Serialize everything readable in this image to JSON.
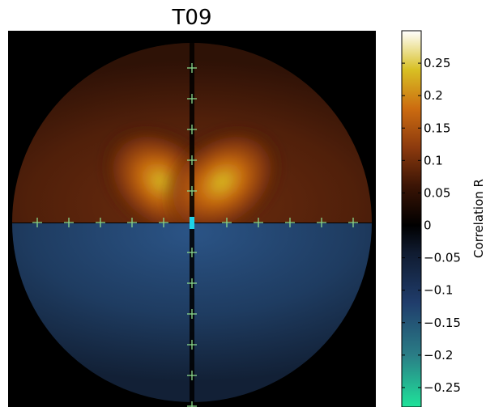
{
  "chart_data": {
    "type": "heatmap",
    "title": "T09",
    "colorbar": {
      "label": "Correlation R",
      "range": [
        -0.28,
        0.3
      ],
      "ticks": [
        0.25,
        0.2,
        0.15,
        0.1,
        0.05,
        0,
        -0.05,
        -0.1,
        -0.15,
        -0.2,
        -0.25
      ],
      "tick_labels": [
        "0.25",
        "0.2",
        "0.15",
        "0.1",
        "0.05",
        "0",
        "−0.05",
        "−0.1",
        "−0.15",
        "−0.2",
        "−0.25"
      ],
      "colormap": [
        {
          "value": -0.28,
          "color": "#1fe39a"
        },
        {
          "value": -0.2,
          "color": "#2a7d86"
        },
        {
          "value": -0.12,
          "color": "#203d6c"
        },
        {
          "value": -0.04,
          "color": "#0f1a2e"
        },
        {
          "value": 0.0,
          "color": "#000000"
        },
        {
          "value": 0.06,
          "color": "#3a1405"
        },
        {
          "value": 0.12,
          "color": "#8c3a0e"
        },
        {
          "value": 0.18,
          "color": "#cc6c10"
        },
        {
          "value": 0.24,
          "color": "#d8c024"
        },
        {
          "value": 0.3,
          "color": "#ffffff"
        }
      ]
    },
    "field": {
      "shape": "disk",
      "upper_half_peak_R": 0.22,
      "lower_half_min_R": -0.09,
      "center_marker_color": "#1fd3e8"
    },
    "markers": {
      "symbol": "+",
      "color": "#8cd98c",
      "horizontal_count": 11,
      "vertical_count": 12
    },
    "grid": false
  }
}
